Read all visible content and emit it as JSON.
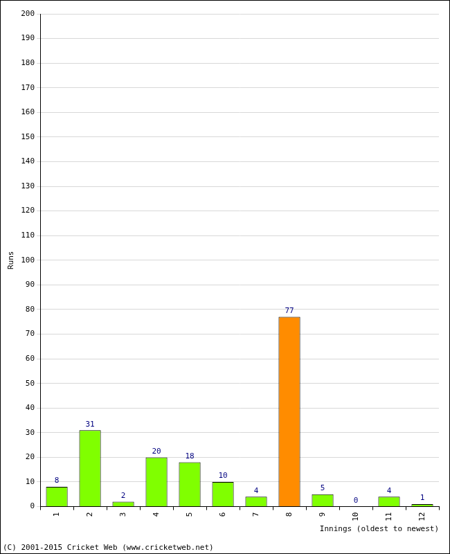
{
  "chart_data": {
    "type": "bar",
    "categories": [
      "1",
      "2",
      "3",
      "4",
      "5",
      "6",
      "7",
      "8",
      "9",
      "10",
      "11",
      "12"
    ],
    "values": [
      8,
      31,
      2,
      20,
      18,
      10,
      4,
      77,
      5,
      0,
      4,
      1
    ],
    "colors": [
      "#80ff00",
      "#80ff00",
      "#80ff00",
      "#80ff00",
      "#80ff00",
      "#80ff00",
      "#80ff00",
      "#ff8c00",
      "#80ff00",
      "#80ff00",
      "#80ff00",
      "#80ff00"
    ],
    "x_label": "Innings (oldest to newest)",
    "y_label": "Runs",
    "annotations": [
      "(C) 2001-2015 Cricket Web (www.cricketweb.net)"
    ],
    "ylim": [
      0,
      200
    ],
    "yticks": [
      0,
      10,
      20,
      30,
      40,
      50,
      60,
      70,
      80,
      90,
      100,
      110,
      120,
      130,
      140,
      150,
      160,
      170,
      180,
      190,
      200
    ],
    "grid": true,
    "data_labels": true
  }
}
